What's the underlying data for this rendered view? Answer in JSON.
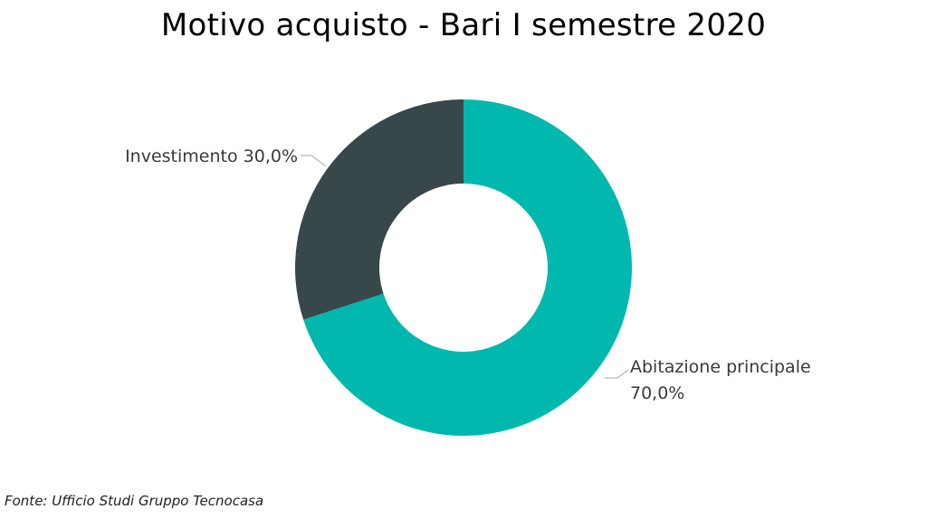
{
  "chart_data": {
    "type": "pie",
    "variant": "donut",
    "title": "Motivo acquisto - Bari I semestre 2020",
    "series": [
      {
        "name": "Abitazione principale",
        "label_line1": "Abitazione principale",
        "label_line2": "70,0%",
        "value": 70.0,
        "color": "#00b8ad"
      },
      {
        "name": "Investimento",
        "label_line1": "Investimento 30,0%",
        "value": 30.0,
        "color": "#37474a"
      }
    ],
    "unit": "%",
    "legend": "none",
    "label_leader_color": "#a6a6a6"
  },
  "source": "Fonte: Ufficio Studi Gruppo Tecnocasa"
}
